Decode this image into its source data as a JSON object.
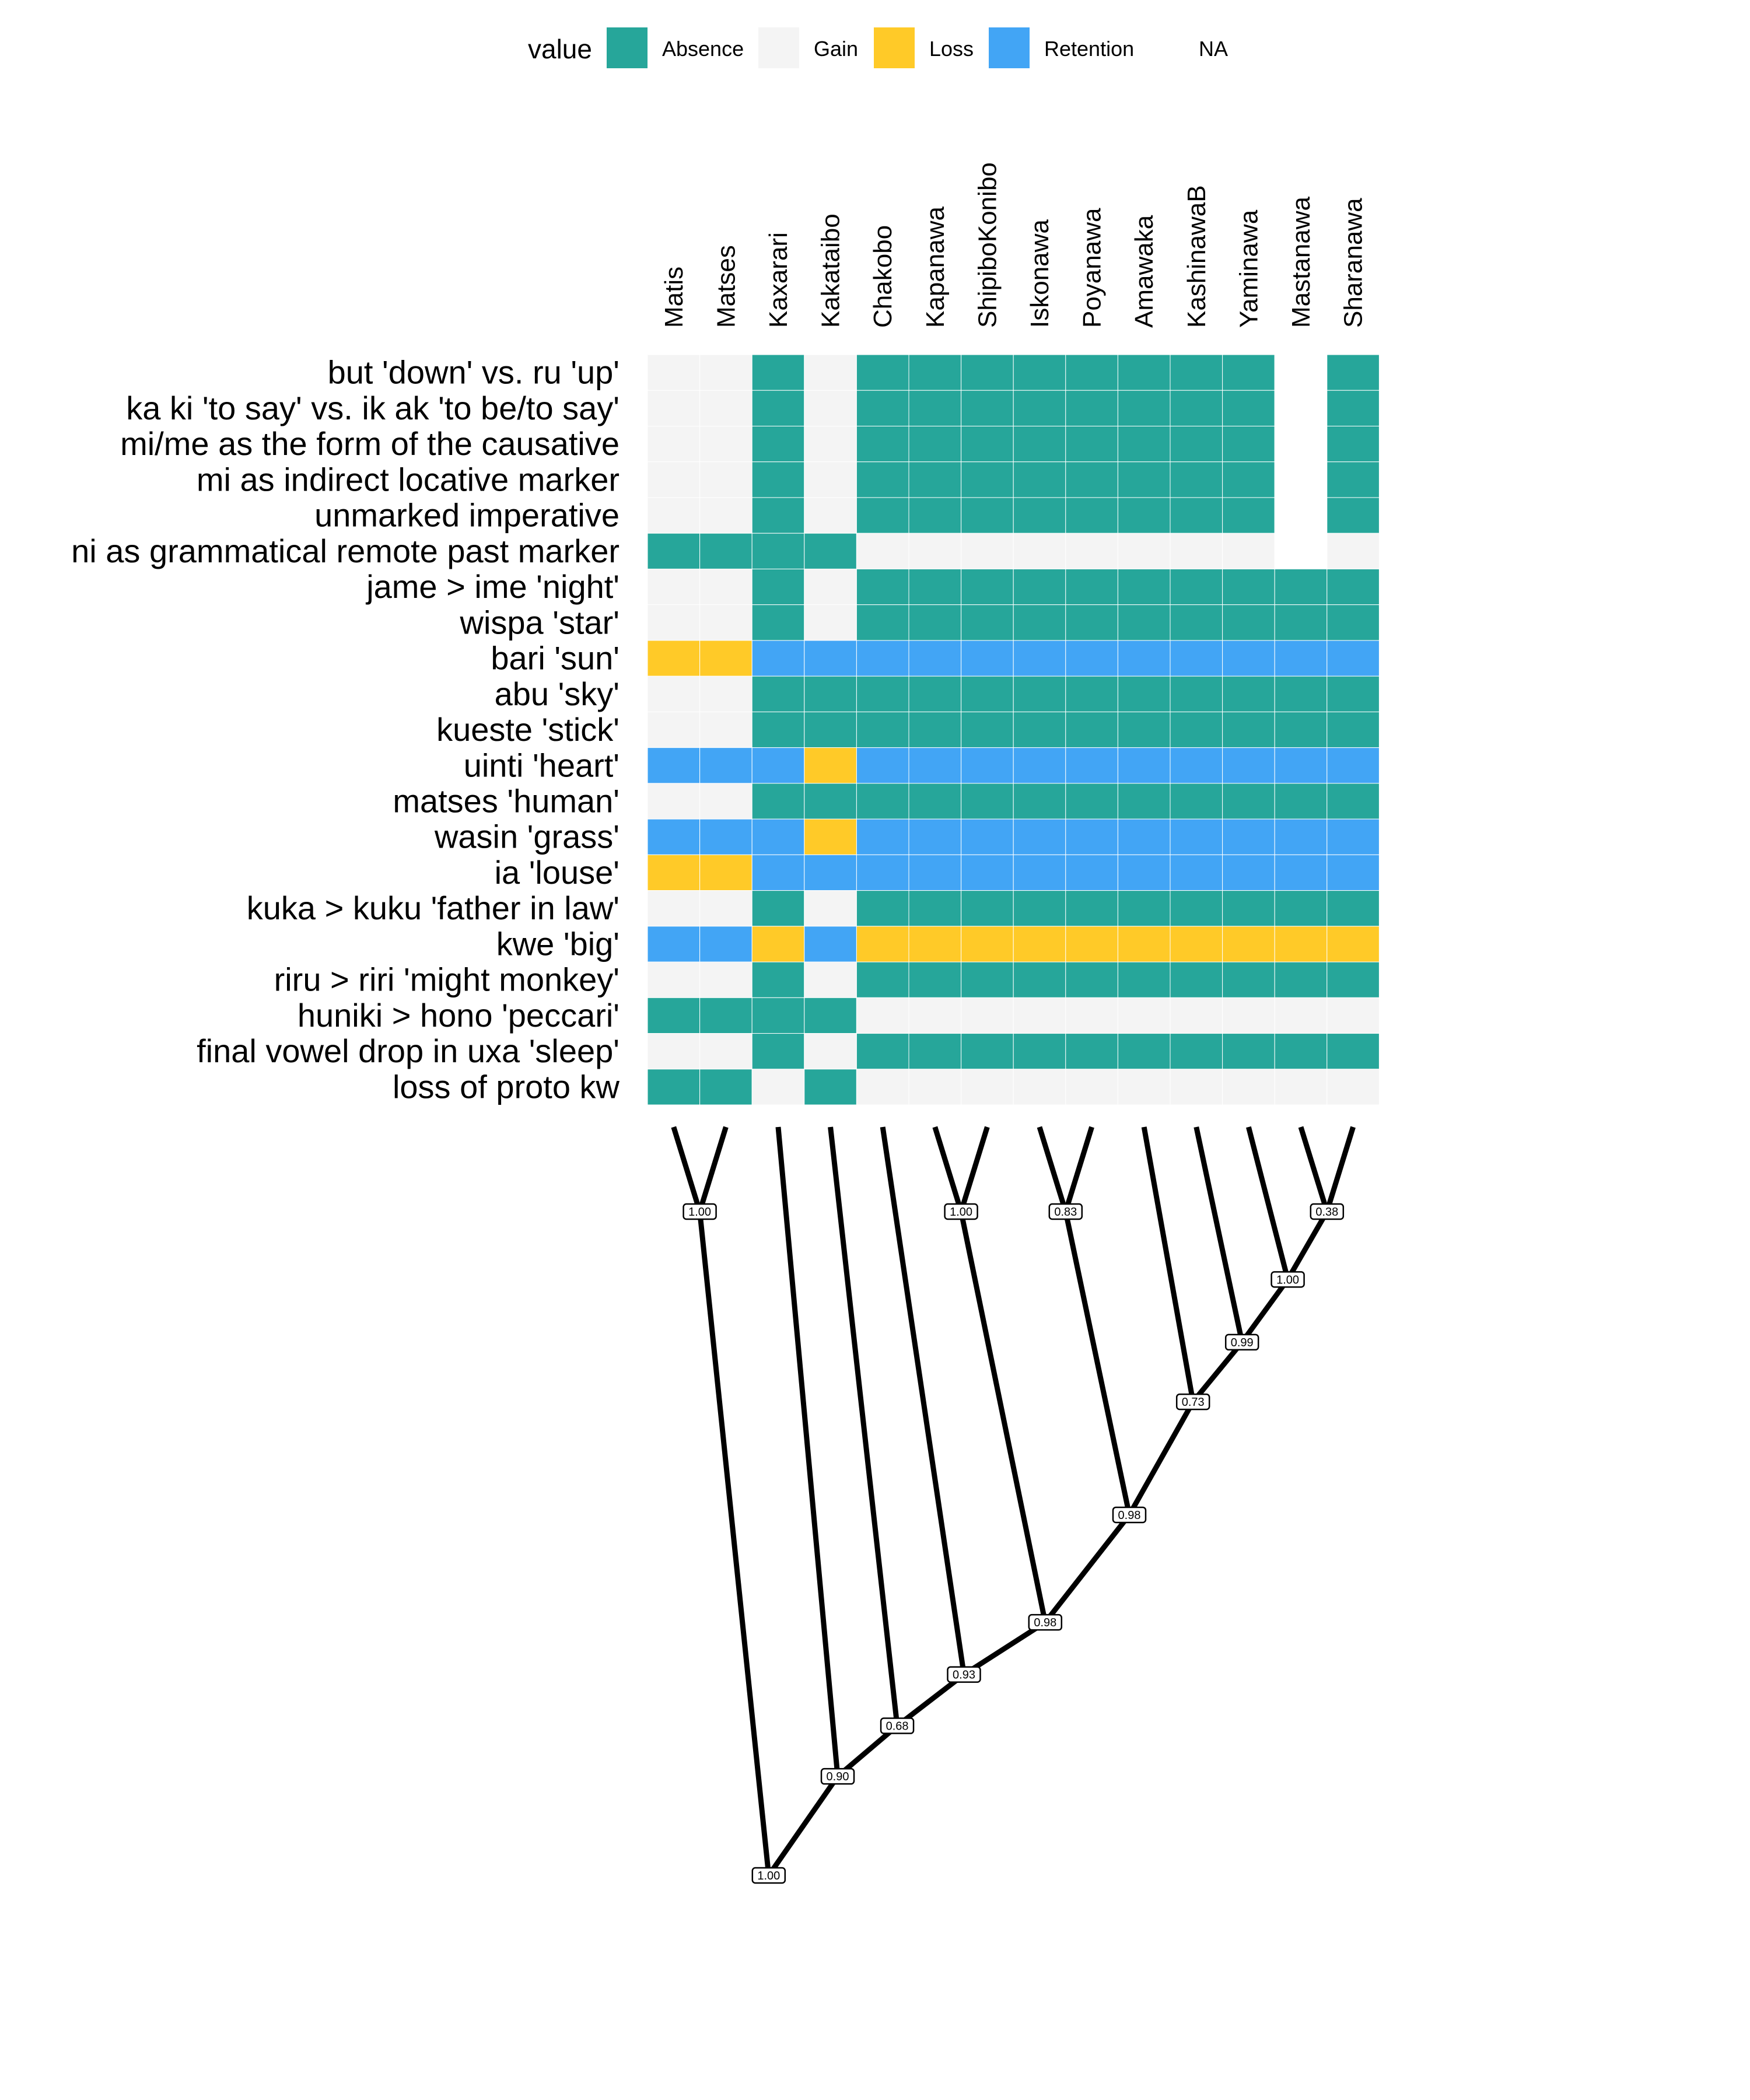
{
  "legend": {
    "title": "value",
    "items": [
      {
        "label": "Absence",
        "color": "#26A69A"
      },
      {
        "label": "Gain",
        "color": "#F4F4F4"
      },
      {
        "label": "Loss",
        "color": "#FFCA28"
      },
      {
        "label": "Retention",
        "color": "#42A5F5"
      },
      {
        "label": "NA",
        "color": "#FFFFFF"
      }
    ]
  },
  "chart_data": {
    "type": "heatmap",
    "legend_position": "top",
    "languages": [
      "Matis",
      "Matses",
      "Kaxarari",
      "Kakataibo",
      "Chakobo",
      "Kapanawa",
      "ShipiboKonibo",
      "Iskonawa",
      "Poyanawa",
      "Amawaka",
      "KashinawaB",
      "Yaminawa",
      "Mastanawa",
      "Sharanawa"
    ],
    "features": [
      "but 'down' vs. ru 'up'",
      "ka ki 'to say' vs. ik ak 'to be/to say'",
      "mi/me as the form of the causative",
      "mi as indirect locative marker",
      "unmarked imperative",
      "ni as grammatical remote past marker",
      "jame > ime 'night'",
      "wispa 'star'",
      "bari 'sun'",
      "abu 'sky'",
      "kueste 'stick'",
      "uinti 'heart'",
      "matses 'human'",
      "wasin 'grass'",
      "ia 'louse'",
      "kuka > kuku 'father in law'",
      "kwe 'big'",
      "riru > riri 'might monkey'",
      "huniki > hono 'peccari'",
      "final vowel drop in uxa 'sleep'",
      "loss of proto kw"
    ],
    "codes": {
      "A": "Absence",
      "G": "Gain",
      "L": "Loss",
      "R": "Retention",
      "N": "NA"
    },
    "values": [
      [
        "G",
        "G",
        "A",
        "G",
        "A",
        "A",
        "A",
        "A",
        "A",
        "A",
        "A",
        "A",
        "N",
        "A"
      ],
      [
        "G",
        "G",
        "A",
        "G",
        "A",
        "A",
        "A",
        "A",
        "A",
        "A",
        "A",
        "A",
        "N",
        "A"
      ],
      [
        "G",
        "G",
        "A",
        "G",
        "A",
        "A",
        "A",
        "A",
        "A",
        "A",
        "A",
        "A",
        "N",
        "A"
      ],
      [
        "G",
        "G",
        "A",
        "G",
        "A",
        "A",
        "A",
        "A",
        "A",
        "A",
        "A",
        "A",
        "N",
        "A"
      ],
      [
        "G",
        "G",
        "A",
        "G",
        "A",
        "A",
        "A",
        "A",
        "A",
        "A",
        "A",
        "A",
        "N",
        "A"
      ],
      [
        "A",
        "A",
        "A",
        "A",
        "G",
        "G",
        "G",
        "G",
        "G",
        "G",
        "G",
        "G",
        "N",
        "G"
      ],
      [
        "G",
        "G",
        "A",
        "G",
        "A",
        "A",
        "A",
        "A",
        "A",
        "A",
        "A",
        "A",
        "A",
        "A"
      ],
      [
        "G",
        "G",
        "A",
        "G",
        "A",
        "A",
        "A",
        "A",
        "A",
        "A",
        "A",
        "A",
        "A",
        "A"
      ],
      [
        "L",
        "L",
        "R",
        "R",
        "R",
        "R",
        "R",
        "R",
        "R",
        "R",
        "R",
        "R",
        "R",
        "R"
      ],
      [
        "G",
        "G",
        "A",
        "A",
        "A",
        "A",
        "A",
        "A",
        "A",
        "A",
        "A",
        "A",
        "A",
        "A"
      ],
      [
        "G",
        "G",
        "A",
        "A",
        "A",
        "A",
        "A",
        "A",
        "A",
        "A",
        "A",
        "A",
        "A",
        "A"
      ],
      [
        "R",
        "R",
        "R",
        "L",
        "R",
        "R",
        "R",
        "R",
        "R",
        "R",
        "R",
        "R",
        "R",
        "R"
      ],
      [
        "G",
        "G",
        "A",
        "A",
        "A",
        "A",
        "A",
        "A",
        "A",
        "A",
        "A",
        "A",
        "A",
        "A"
      ],
      [
        "R",
        "R",
        "R",
        "L",
        "R",
        "R",
        "R",
        "R",
        "R",
        "R",
        "R",
        "R",
        "R",
        "R"
      ],
      [
        "L",
        "L",
        "R",
        "R",
        "R",
        "R",
        "R",
        "R",
        "R",
        "R",
        "R",
        "R",
        "R",
        "R"
      ],
      [
        "G",
        "G",
        "A",
        "G",
        "A",
        "A",
        "A",
        "A",
        "A",
        "A",
        "A",
        "A",
        "A",
        "A"
      ],
      [
        "R",
        "R",
        "L",
        "R",
        "L",
        "L",
        "L",
        "L",
        "L",
        "L",
        "L",
        "L",
        "L",
        "L"
      ],
      [
        "G",
        "G",
        "A",
        "G",
        "A",
        "A",
        "A",
        "A",
        "A",
        "A",
        "A",
        "A",
        "A",
        "A"
      ],
      [
        "A",
        "A",
        "A",
        "A",
        "G",
        "G",
        "G",
        "G",
        "G",
        "G",
        "G",
        "G",
        "G",
        "G"
      ],
      [
        "G",
        "G",
        "A",
        "G",
        "A",
        "A",
        "A",
        "A",
        "A",
        "A",
        "A",
        "A",
        "A",
        "A"
      ],
      [
        "A",
        "A",
        "G",
        "A",
        "G",
        "G",
        "G",
        "G",
        "G",
        "G",
        "G",
        "G",
        "G",
        "G"
      ]
    ],
    "tree": {
      "type": "dendrogram",
      "node_support": [
        {
          "clade": [
            "Matis",
            "Matses"
          ],
          "value": "1.00"
        },
        {
          "clade": [
            "Kapanawa",
            "ShipiboKonibo"
          ],
          "value": "1.00"
        },
        {
          "clade": [
            "Iskonawa",
            "Poyanawa"
          ],
          "value": "0.83"
        },
        {
          "clade": [
            "Mastanawa",
            "Sharanawa"
          ],
          "value": "0.38"
        },
        {
          "clade": [
            "Yaminawa",
            "Mastanawa",
            "Sharanawa"
          ],
          "value": "1.00"
        },
        {
          "clade": [
            "KashinawaB",
            "Yaminawa",
            "Mastanawa",
            "Sharanawa"
          ],
          "value": "0.99"
        },
        {
          "clade": [
            "Amawaka",
            "KashinawaB",
            "Yaminawa",
            "Mastanawa",
            "Sharanawa"
          ],
          "value": "0.73"
        },
        {
          "clade": [
            "Iskonawa",
            "Poyanawa",
            "Amawaka",
            "KashinawaB",
            "Yaminawa",
            "Mastanawa",
            "Sharanawa"
          ],
          "value": "0.98"
        },
        {
          "clade": [
            "Kapanawa",
            "ShipiboKonibo",
            "Iskonawa",
            "Poyanawa",
            "Amawaka",
            "KashinawaB",
            "Yaminawa",
            "Mastanawa",
            "Sharanawa"
          ],
          "value": "0.98"
        },
        {
          "clade": [
            "Chakobo",
            "Kapanawa",
            "ShipiboKonibo",
            "Iskonawa",
            "Poyanawa",
            "Amawaka",
            "KashinawaB",
            "Yaminawa",
            "Mastanawa",
            "Sharanawa"
          ],
          "value": "0.93"
        },
        {
          "clade": [
            "Kakataibo",
            "Chakobo",
            "Kapanawa",
            "ShipiboKonibo",
            "Iskonawa",
            "Poyanawa",
            "Amawaka",
            "KashinawaB",
            "Yaminawa",
            "Mastanawa",
            "Sharanawa"
          ],
          "value": "0.68"
        },
        {
          "clade": [
            "Kaxarari",
            "Kakataibo",
            "Chakobo",
            "Kapanawa",
            "ShipiboKonibo",
            "Iskonawa",
            "Poyanawa",
            "Amawaka",
            "KashinawaB",
            "Yaminawa",
            "Mastanawa",
            "Sharanawa"
          ],
          "value": "0.90"
        },
        {
          "clade": [
            "Matis",
            "Matses",
            "Kaxarari",
            "Kakataibo",
            "Chakobo",
            "Kapanawa",
            "ShipiboKonibo",
            "Iskonawa",
            "Poyanawa",
            "Amawaka",
            "KashinawaB",
            "Yaminawa",
            "Mastanawa",
            "Sharanawa"
          ],
          "value": "1.00"
        }
      ]
    }
  }
}
